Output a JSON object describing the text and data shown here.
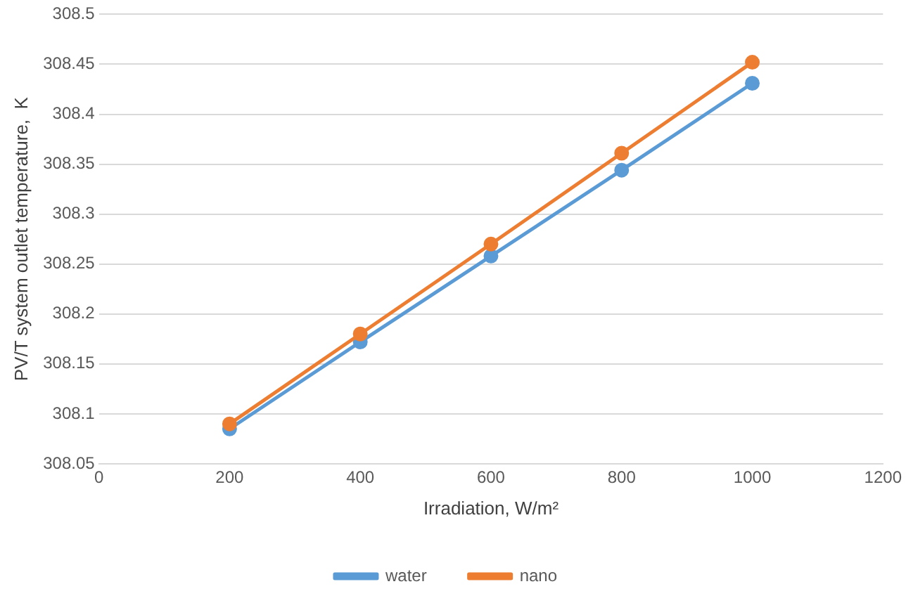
{
  "chart_data": {
    "type": "line",
    "xlabel": "Irradiation, W/m²",
    "ylabel": "PV/T system outlet temperature,  K",
    "x": [
      200,
      400,
      600,
      800,
      1000
    ],
    "series": [
      {
        "name": "water",
        "color": "#5b9bd5",
        "values": [
          308.085,
          308.172,
          308.258,
          308.344,
          308.431
        ]
      },
      {
        "name": "nano",
        "color": "#ed7d31",
        "values": [
          308.09,
          308.18,
          308.27,
          308.361,
          308.452
        ]
      }
    ],
    "xlim": [
      0,
      1200
    ],
    "xticks": [
      0,
      200,
      400,
      600,
      800,
      1000,
      1200
    ],
    "ylim": [
      308.05,
      308.5
    ],
    "yticks": [
      308.05,
      308.1,
      308.15,
      308.2,
      308.25,
      308.3,
      308.35,
      308.4,
      308.45,
      308.5
    ],
    "grid": "y",
    "legend": "bottom",
    "marker": "circle",
    "line_style": "solid"
  }
}
